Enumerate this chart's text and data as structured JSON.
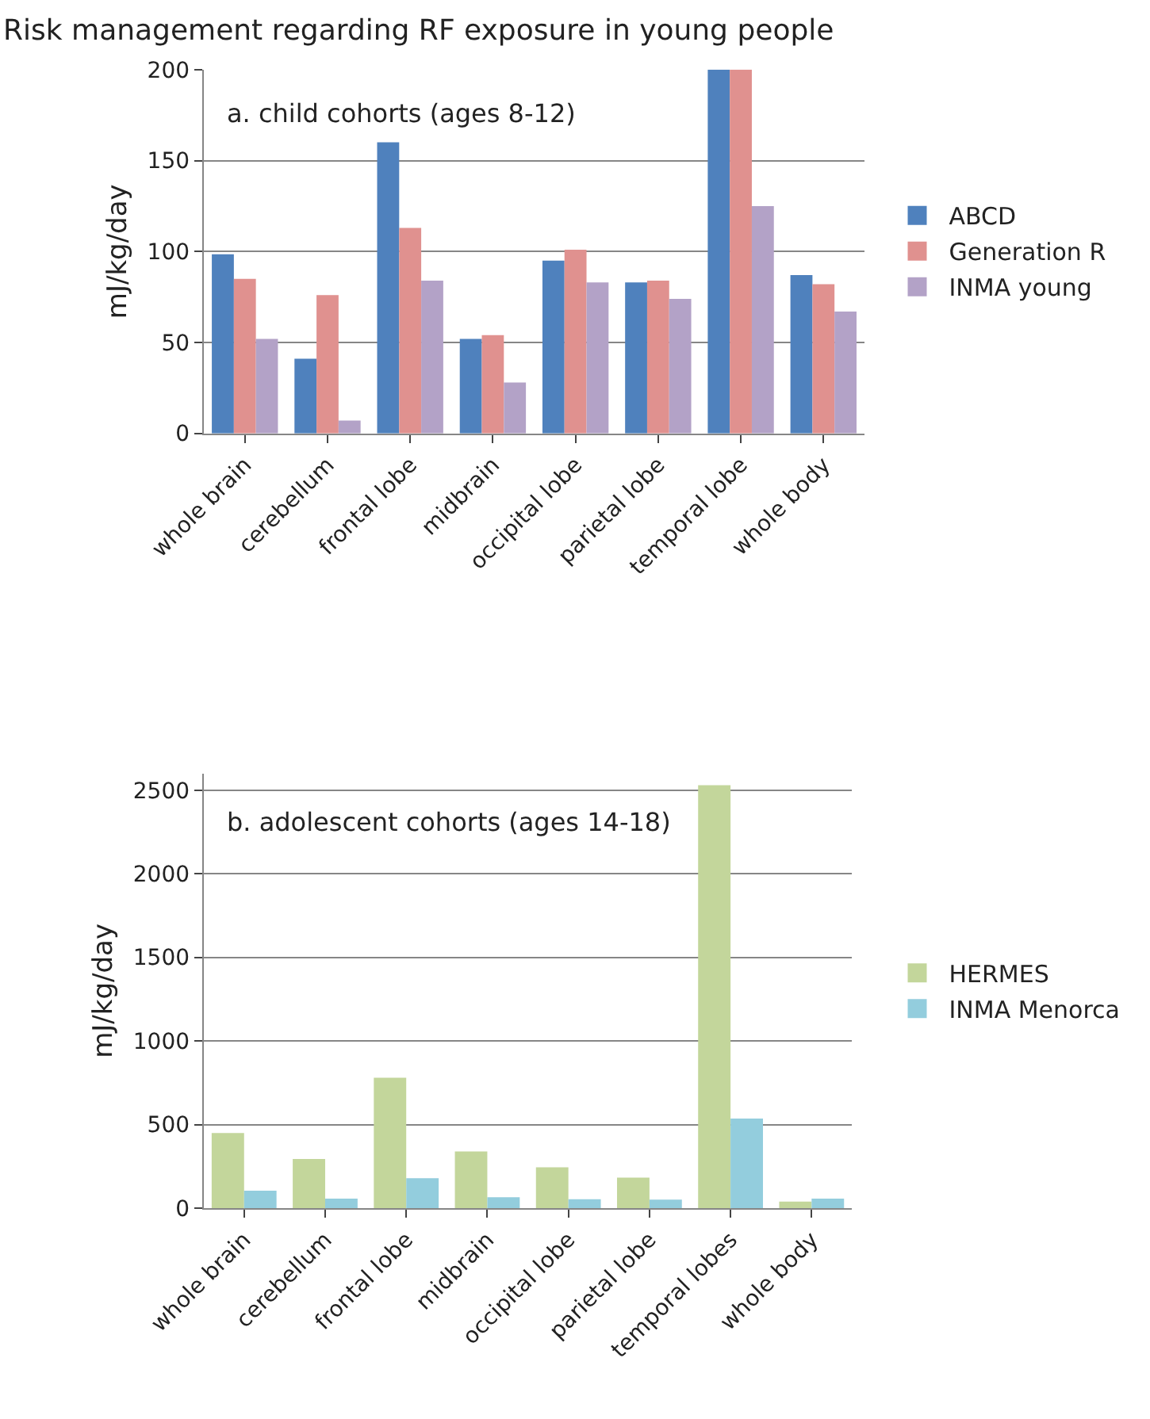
{
  "chart_data": [
    {
      "type": "bar",
      "title": "a. child cohorts (ages 8-12)",
      "ylabel": "mJ/kg/day",
      "annotations": [
        "Risk management regarding RF exposure in young people"
      ],
      "categories": [
        "whole brain",
        "cerebellum",
        "frontal lobe",
        "midbrain",
        "occipital lobe",
        "parietal lobe",
        "temporal lobe",
        "whole body"
      ],
      "series": [
        {
          "name": "ABCD",
          "color": "#4f81bd",
          "values": [
            98.5,
            41,
            160,
            52,
            95,
            83,
            200,
            87
          ]
        },
        {
          "name": "Generation R",
          "color": "#e0918f",
          "values": [
            85,
            76,
            113,
            54,
            101,
            84,
            200,
            82
          ]
        },
        {
          "name": "INMA young",
          "color": "#b3a2c7",
          "values": [
            52,
            7,
            84,
            28,
            83,
            74,
            125,
            67
          ]
        }
      ],
      "ylim": [
        0,
        200
      ],
      "yticks": [
        0,
        50,
        100,
        150,
        200
      ],
      "grid": "y",
      "legend": "right"
    },
    {
      "type": "bar",
      "title": "b. adolescent cohorts (ages 14-18)",
      "ylabel": "mJ/kg/day",
      "categories": [
        "whole brain",
        "cerebellum",
        "frontal lobe",
        "midbrain",
        "occipital lobe",
        "parietal lobe",
        "temporal lobes",
        "whole body"
      ],
      "series": [
        {
          "name": "HERMES",
          "color": "#c3d69b",
          "values": [
            450,
            295,
            780,
            340,
            245,
            183,
            2530,
            40
          ]
        },
        {
          "name": "INMA Menorca",
          "color": "#93cddd",
          "values": [
            105,
            57,
            180,
            66,
            54,
            51,
            536,
            57
          ]
        }
      ],
      "ylim": [
        0,
        2600
      ],
      "yticks": [
        0,
        500,
        1000,
        1500,
        2000,
        2500
      ],
      "grid": "y",
      "legend": "right"
    }
  ]
}
